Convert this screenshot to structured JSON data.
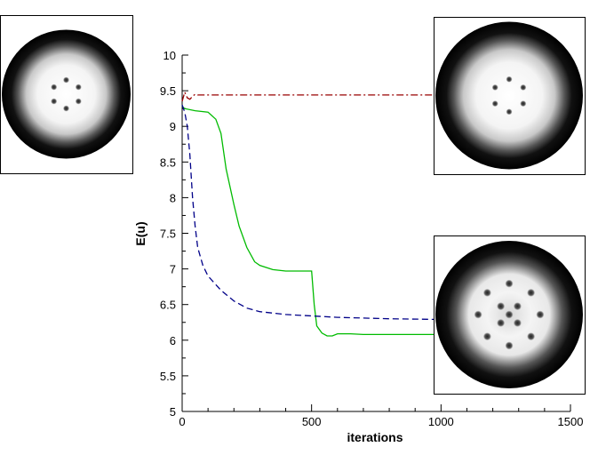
{
  "chart_data": {
    "type": "line",
    "title": "",
    "xlabel": "iterations",
    "ylabel": "E(u)",
    "xlim": [
      0,
      1500
    ],
    "ylim": [
      5,
      10
    ],
    "xticks": [
      0,
      500,
      1000,
      1500
    ],
    "yticks": [
      5,
      5.5,
      6,
      6.5,
      7,
      7.5,
      8,
      8.5,
      9,
      9.5,
      10
    ],
    "grid": false,
    "legend": "none",
    "series": [
      {
        "style": "dash-dot",
        "color": "#990000",
        "x": [
          0,
          10,
          20,
          30,
          40,
          50,
          60,
          100,
          200,
          500,
          1000
        ],
        "y": [
          9.35,
          9.48,
          9.4,
          9.38,
          9.42,
          9.45,
          9.44,
          9.44,
          9.44,
          9.44,
          9.44
        ]
      },
      {
        "style": "solid",
        "color": "#00bb00",
        "x": [
          0,
          10,
          50,
          100,
          130,
          150,
          170,
          200,
          220,
          250,
          280,
          300,
          350,
          400,
          450,
          500,
          510,
          520,
          540,
          560,
          580,
          600,
          650,
          700,
          800,
          900,
          1000
        ],
        "y": [
          9.28,
          9.25,
          9.22,
          9.2,
          9.1,
          8.9,
          8.4,
          7.9,
          7.6,
          7.3,
          7.1,
          7.05,
          6.99,
          6.97,
          6.97,
          6.97,
          6.5,
          6.2,
          6.1,
          6.06,
          6.06,
          6.09,
          6.09,
          6.08,
          6.08,
          6.08,
          6.08
        ]
      },
      {
        "style": "dashed",
        "color": "#000088",
        "x": [
          0,
          10,
          20,
          30,
          40,
          50,
          60,
          80,
          100,
          150,
          200,
          250,
          300,
          400,
          500,
          600,
          800,
          1000
        ],
        "y": [
          9.3,
          9.2,
          9.0,
          8.6,
          8.0,
          7.6,
          7.3,
          7.05,
          6.9,
          6.7,
          6.55,
          6.45,
          6.4,
          6.36,
          6.34,
          6.32,
          6.3,
          6.29
        ]
      }
    ],
    "insets": [
      {
        "position": "top-left",
        "spot_count": 6,
        "icon": "ring-with-6-spots-icon"
      },
      {
        "position": "top-right",
        "spot_count": 6,
        "icon": "ring-with-6-spots-icon"
      },
      {
        "position": "bottom-right",
        "spot_count": 13,
        "icon": "ring-with-13-spots-icon"
      }
    ]
  }
}
